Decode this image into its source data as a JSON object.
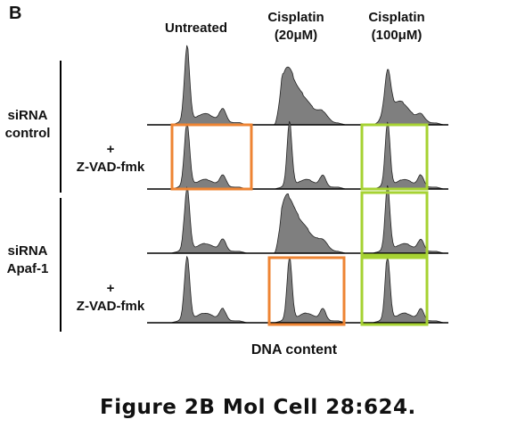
{
  "panel_letter": "B",
  "columns": {
    "untreated": [
      "Untreated"
    ],
    "cisplatin_20": [
      "Cisplatin",
      "(20μM)"
    ],
    "cisplatin_100": [
      "Cisplatin",
      "(100μM)"
    ]
  },
  "rows": {
    "sirna_control": [
      "siRNA",
      "control"
    ],
    "sirna_apaf": [
      "siRNA",
      "Apaf-1"
    ],
    "zvad_1": [
      "+",
      "Z-VAD-fmk"
    ],
    "zvad_2": [
      "+",
      "Z-VAD-fmk"
    ]
  },
  "x_axis_label": "DNA content",
  "caption": "Figure 2B Mol Cell 28:624.",
  "colors": {
    "histogram_fill": "#7f7f7f",
    "axis_line": "#000000",
    "highlight_orange": "#ee8433",
    "highlight_green": "#a6d232"
  }
}
